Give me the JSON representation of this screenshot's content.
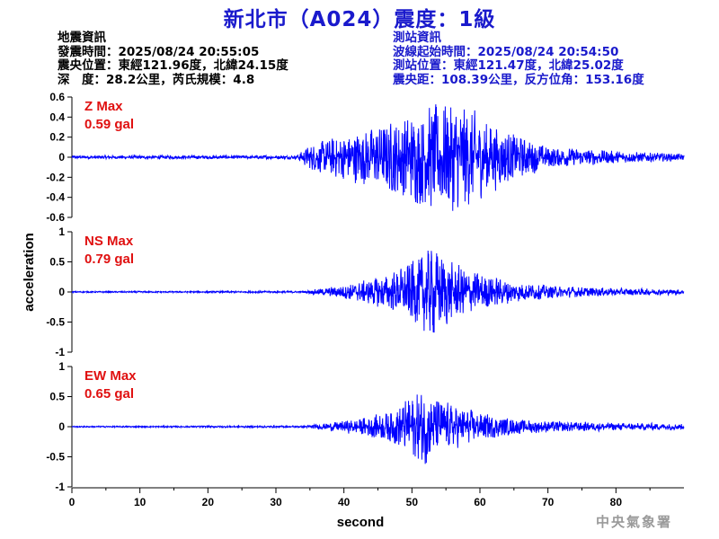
{
  "title": "新北市（A024）震度：1級",
  "event_info": {
    "heading": "地震資訊",
    "origin_time": "發震時間：2025/08/24 20:55:05",
    "epicenter": "震央位置：東經121.96度，北緯24.15度",
    "depth_magnitude": "深　度：28.2公里，芮氏規模：4.8"
  },
  "station_info": {
    "heading": "測站資訊",
    "wave_start": "波線起始時間：2025/08/24 20:54:50",
    "location": "測站位置：東經121.47度，北緯25.02度",
    "distance": "震央距：108.39公里，反方位角：153.16度"
  },
  "agency": "中央氣象署",
  "chart_data": [
    {
      "type": "line",
      "component": "Z",
      "max_label": "Z Max",
      "max_value": "0.59 gal",
      "peak": 0.59,
      "ylim": [
        -0.6,
        0.6
      ],
      "yticks": [
        "0.6",
        "0.4",
        "0.2",
        "0",
        "-0.2",
        "-0.4",
        "-0.6"
      ],
      "ytick_values": [
        0.6,
        0.4,
        0.2,
        0,
        -0.2,
        -0.4,
        -0.6
      ],
      "color": "#0000ff",
      "envelope": [
        [
          0,
          0.015
        ],
        [
          33,
          0.018
        ],
        [
          35,
          0.12
        ],
        [
          40,
          0.22
        ],
        [
          45,
          0.3
        ],
        [
          50,
          0.42
        ],
        [
          53,
          0.5
        ],
        [
          57,
          0.55
        ],
        [
          60,
          0.38
        ],
        [
          65,
          0.22
        ],
        [
          70,
          0.1
        ],
        [
          80,
          0.06
        ],
        [
          90,
          0.03
        ]
      ]
    },
    {
      "type": "line",
      "component": "NS",
      "max_label": "NS Max",
      "max_value": "0.79 gal",
      "peak": 0.79,
      "ylim": [
        -1,
        1
      ],
      "yticks": [
        "1",
        "0.5",
        "0",
        "-0.5",
        "-1"
      ],
      "ytick_values": [
        1,
        0.5,
        0,
        -0.5,
        -1
      ],
      "color": "#0000ff",
      "envelope": [
        [
          0,
          0.01
        ],
        [
          34,
          0.015
        ],
        [
          37,
          0.06
        ],
        [
          42,
          0.15
        ],
        [
          47,
          0.3
        ],
        [
          51,
          0.55
        ],
        [
          53,
          0.75
        ],
        [
          56,
          0.45
        ],
        [
          60,
          0.3
        ],
        [
          65,
          0.17
        ],
        [
          70,
          0.1
        ],
        [
          80,
          0.06
        ],
        [
          90,
          0.04
        ]
      ]
    },
    {
      "type": "line",
      "component": "EW",
      "max_label": "EW Max",
      "max_value": "0.65 gal",
      "peak": 0.65,
      "ylim": [
        -1,
        1
      ],
      "yticks": [
        "1",
        "0.5",
        "0",
        "-0.5",
        "-1"
      ],
      "ytick_values": [
        1,
        0.5,
        0,
        -0.5,
        -1
      ],
      "color": "#0000ff",
      "envelope": [
        [
          0,
          0.01
        ],
        [
          34,
          0.015
        ],
        [
          37,
          0.05
        ],
        [
          42,
          0.12
        ],
        [
          47,
          0.25
        ],
        [
          50,
          0.5
        ],
        [
          52,
          0.6
        ],
        [
          55,
          0.38
        ],
        [
          60,
          0.22
        ],
        [
          65,
          0.12
        ],
        [
          70,
          0.09
        ],
        [
          80,
          0.06
        ],
        [
          90,
          0.05
        ]
      ]
    }
  ],
  "xaxis": {
    "label": "second",
    "ylabel": "acceleration",
    "xlim": [
      0,
      90
    ],
    "ticks": [
      0,
      10,
      20,
      30,
      40,
      50,
      60,
      70,
      80
    ]
  }
}
